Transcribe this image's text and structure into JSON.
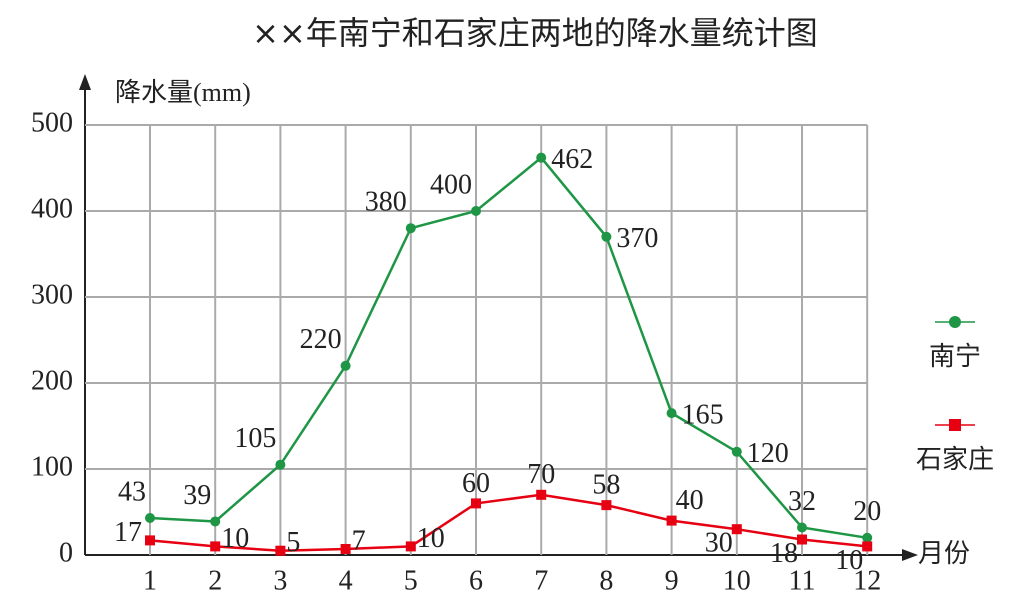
{
  "chart_data": {
    "type": "line",
    "title": "××年南宁和石家庄两地的降水量统计图",
    "y_label": "降水量(mm)",
    "x_label": "月份",
    "categories": [
      "1",
      "2",
      "3",
      "4",
      "5",
      "6",
      "7",
      "8",
      "9",
      "10",
      "11",
      "12"
    ],
    "series": [
      {
        "name": "南宁",
        "color": "#1e9645",
        "marker": "circle",
        "values": [
          43,
          39,
          105,
          220,
          380,
          400,
          462,
          370,
          165,
          120,
          32,
          20
        ]
      },
      {
        "name": "石家庄",
        "color": "#e60012",
        "marker": "square",
        "values": [
          17,
          10,
          5,
          7,
          10,
          60,
          70,
          58,
          40,
          30,
          18,
          10
        ]
      }
    ],
    "ylim": [
      0,
      500
    ],
    "yticks": [
      0,
      100,
      200,
      300,
      400,
      500
    ],
    "grid": true,
    "legend": "right"
  }
}
